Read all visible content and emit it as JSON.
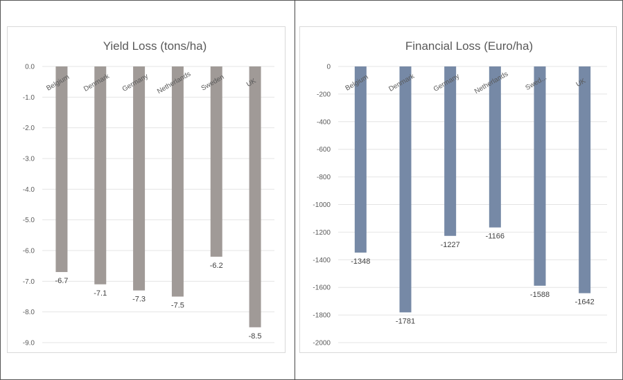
{
  "charts": [
    {
      "id": "yield",
      "chart_data": {
        "type": "bar",
        "title": "Yield Loss (tons/ha)",
        "categories": [
          "Belgium",
          "Denmark",
          "Germany",
          "Netherlands",
          "Sweden",
          "UK"
        ],
        "category_labels_shown": [
          "Belgium",
          "Denmark",
          "Germany",
          "Netherlands",
          "Sweden",
          "UK"
        ],
        "values": [
          -6.7,
          -7.1,
          -7.3,
          -7.5,
          -6.2,
          -8.5
        ],
        "value_labels": [
          "-6.7",
          "-7.1",
          "-7.3",
          "-7.5",
          "-6.2",
          "-8.5"
        ],
        "ylim": [
          -9.0,
          0.0
        ],
        "yticks": [
          0,
          -1,
          -2,
          -3,
          -4,
          -5,
          -6,
          -7,
          -8,
          -9
        ],
        "ytick_labels": [
          "0.0",
          "-1.0",
          "-2.0",
          "-3.0",
          "-4.0",
          "-5.0",
          "-6.0",
          "-7.0",
          "-8.0",
          "-9.0"
        ],
        "grid": true,
        "legend": "none",
        "bar_color": "#a09a97"
      }
    },
    {
      "id": "financial",
      "chart_data": {
        "type": "bar",
        "title": "Financial Loss (Euro/ha)",
        "categories": [
          "Belgium",
          "Denmark",
          "Germany",
          "Netherlands",
          "Sweden",
          "UK"
        ],
        "category_labels_shown": [
          "Belgium",
          "Denmark",
          "Germany",
          "Netherlands",
          "Swed...",
          "UK"
        ],
        "values": [
          -1348,
          -1781,
          -1227,
          -1166,
          -1588,
          -1642
        ],
        "value_labels": [
          "-1348",
          "-1781",
          "-1227",
          "-1166",
          "-1588",
          "-1642"
        ],
        "ylim": [
          -2000,
          0
        ],
        "yticks": [
          0,
          -200,
          -400,
          -600,
          -800,
          -1000,
          -1200,
          -1400,
          -1600,
          -1800,
          -2000
        ],
        "ytick_labels": [
          "0",
          "-200",
          "-400",
          "-600",
          "-800",
          "-1000",
          "-1200",
          "-1400",
          "-1600",
          "-1800",
          "-2000"
        ],
        "grid": true,
        "legend": "none",
        "bar_color": "#7689a6"
      }
    }
  ]
}
